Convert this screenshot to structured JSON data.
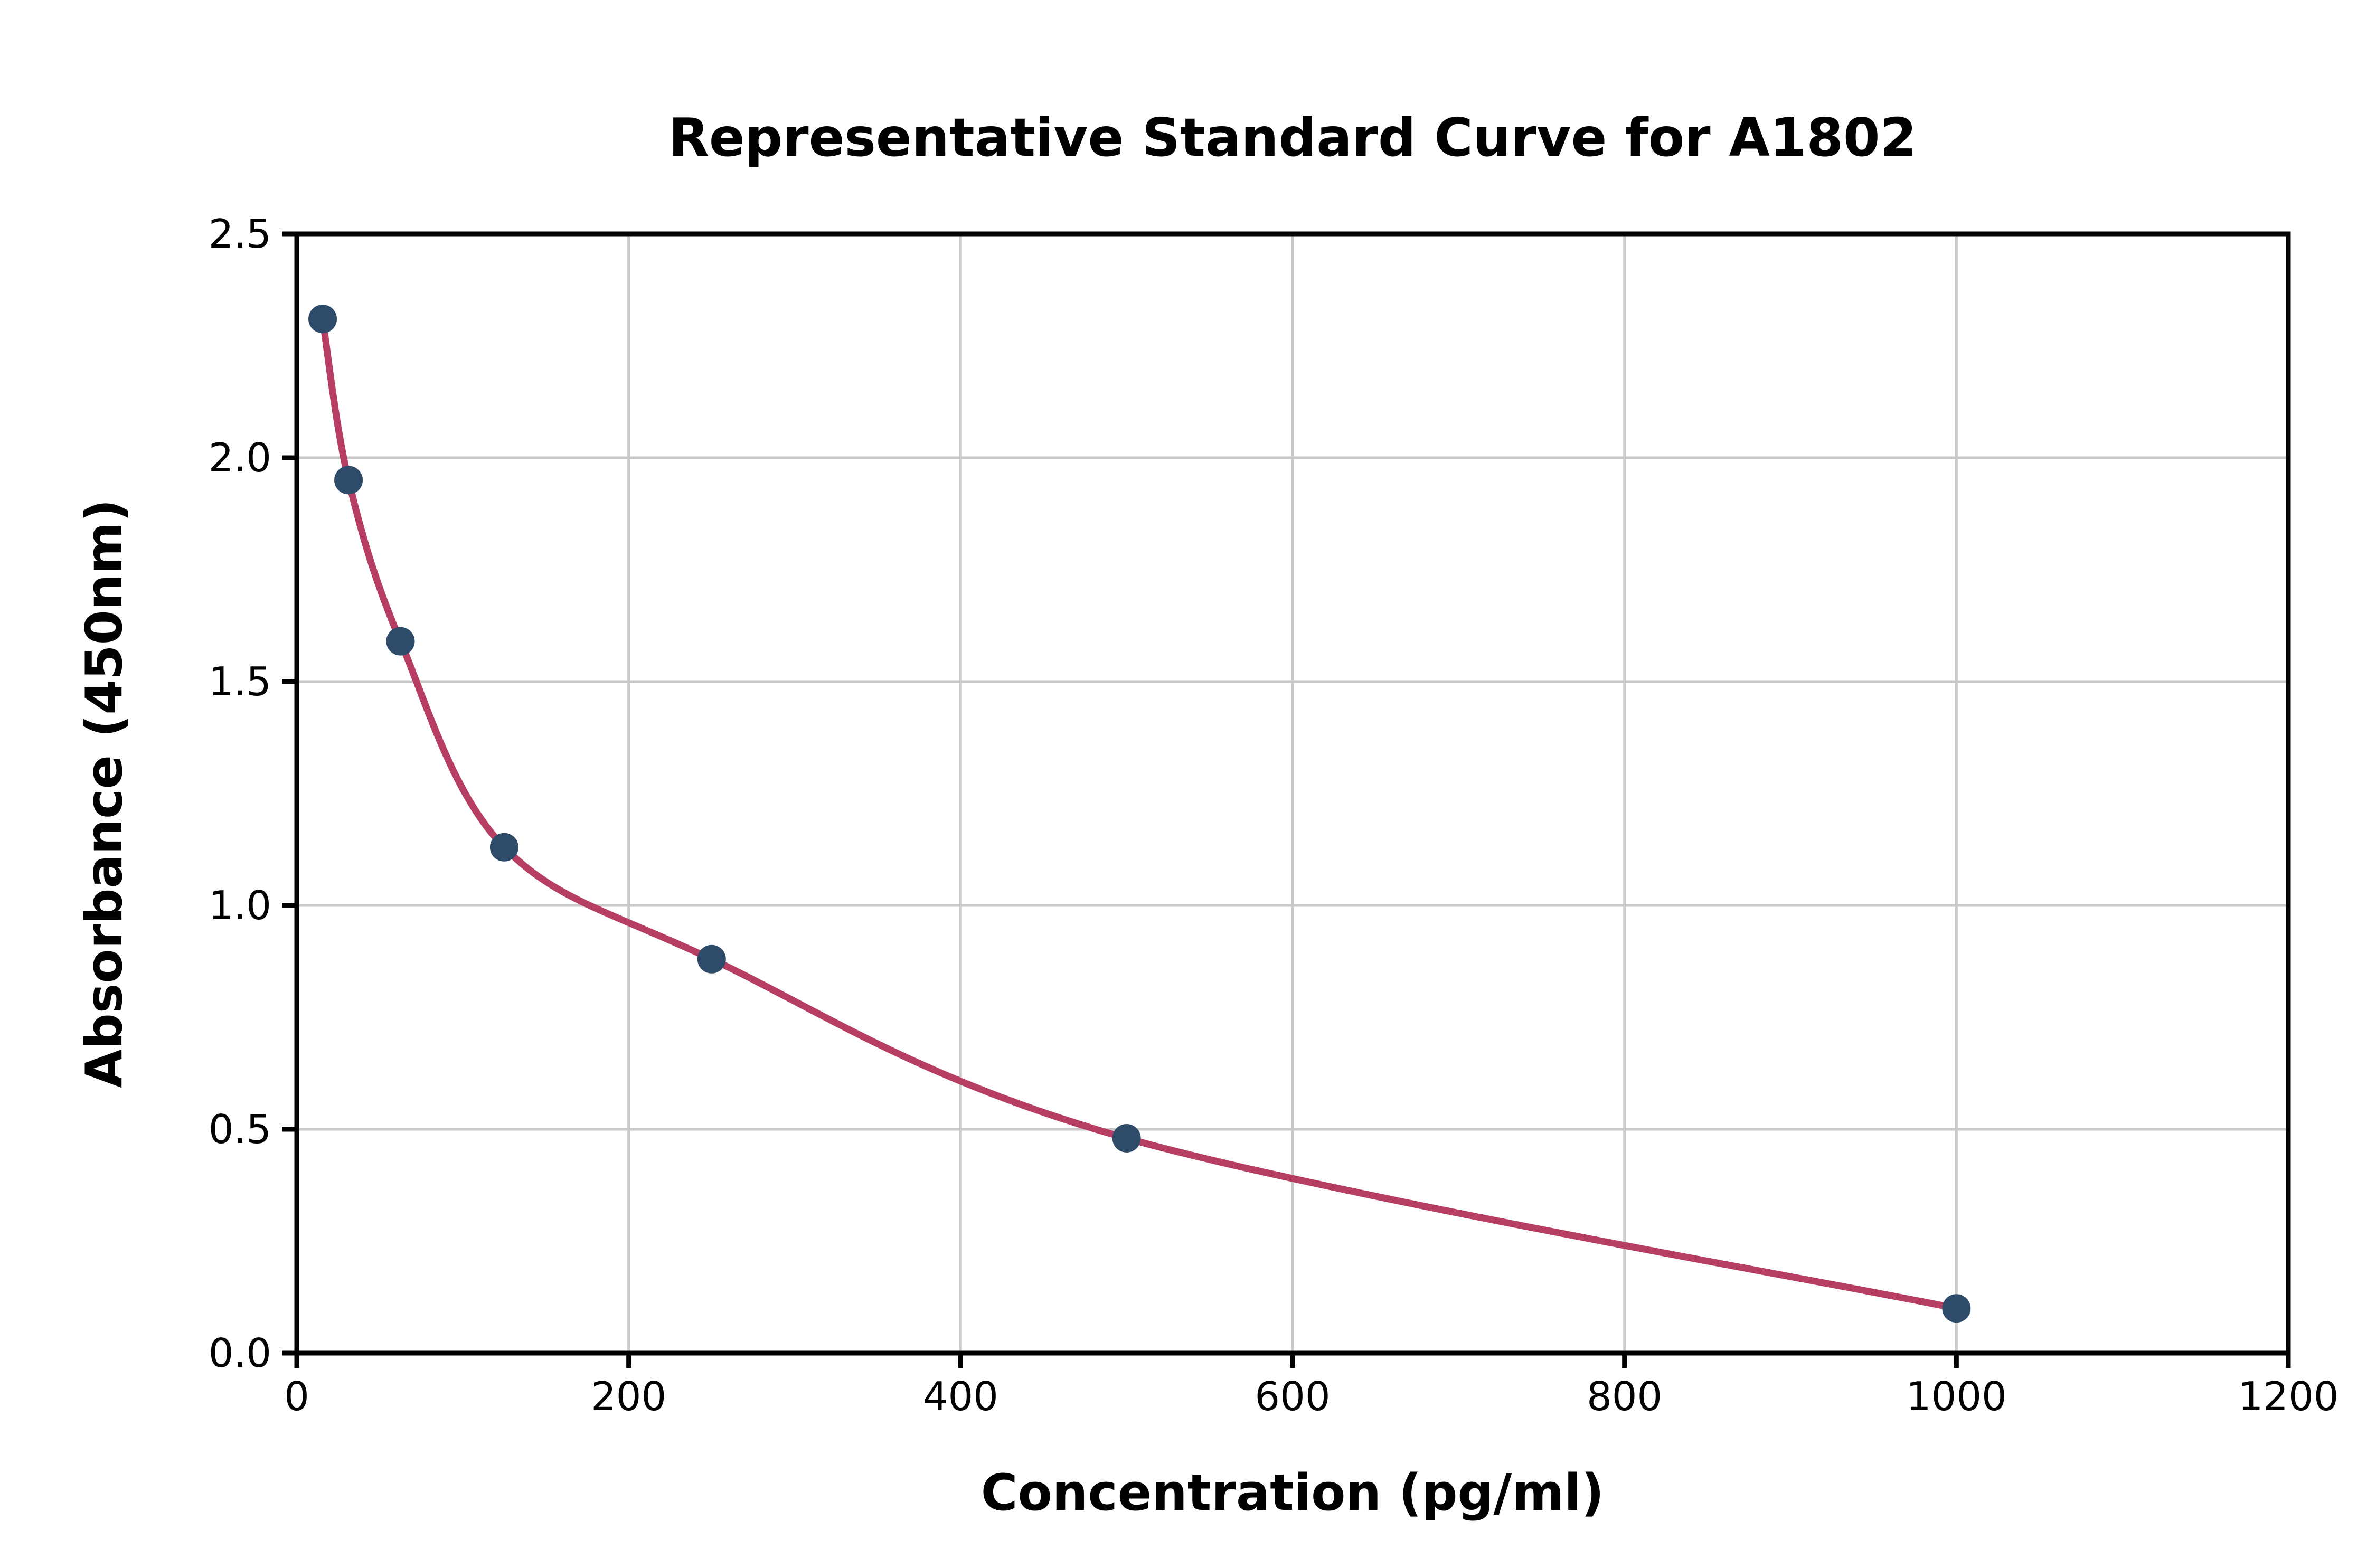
{
  "chart_data": {
    "type": "scatter",
    "title": "Representative Standard Curve for A1802",
    "xlabel": "Concentration (pg/ml)",
    "ylabel": "Absorbance (450nm)",
    "xlim": [
      0,
      1200
    ],
    "ylim": [
      0,
      2.5
    ],
    "grid": true,
    "legend": "none",
    "x_tick_values": [
      0,
      200,
      400,
      600,
      800,
      1000,
      1200
    ],
    "x_tick_labels": [
      "0",
      "200",
      "400",
      "600",
      "800",
      "1000",
      "1200"
    ],
    "y_tick_values": [
      0,
      0.5,
      1.0,
      1.5,
      2.0,
      2.5
    ],
    "y_tick_labels": [
      "0.0",
      "0.5",
      "1.0",
      "1.5",
      "2.0",
      "2.5"
    ],
    "points": [
      {
        "x": 15.6,
        "y": 2.31
      },
      {
        "x": 31.2,
        "y": 1.95
      },
      {
        "x": 62.5,
        "y": 1.59
      },
      {
        "x": 125,
        "y": 1.13
      },
      {
        "x": 250,
        "y": 0.88
      },
      {
        "x": 500,
        "y": 0.48
      },
      {
        "x": 1000,
        "y": 0.1
      }
    ],
    "fit_curve": true,
    "colors": {
      "marker": "#2f4b6a",
      "curve": "#b63e62",
      "grid": "#c8c8c8",
      "axis": "#000000",
      "background": "#ffffff"
    }
  }
}
